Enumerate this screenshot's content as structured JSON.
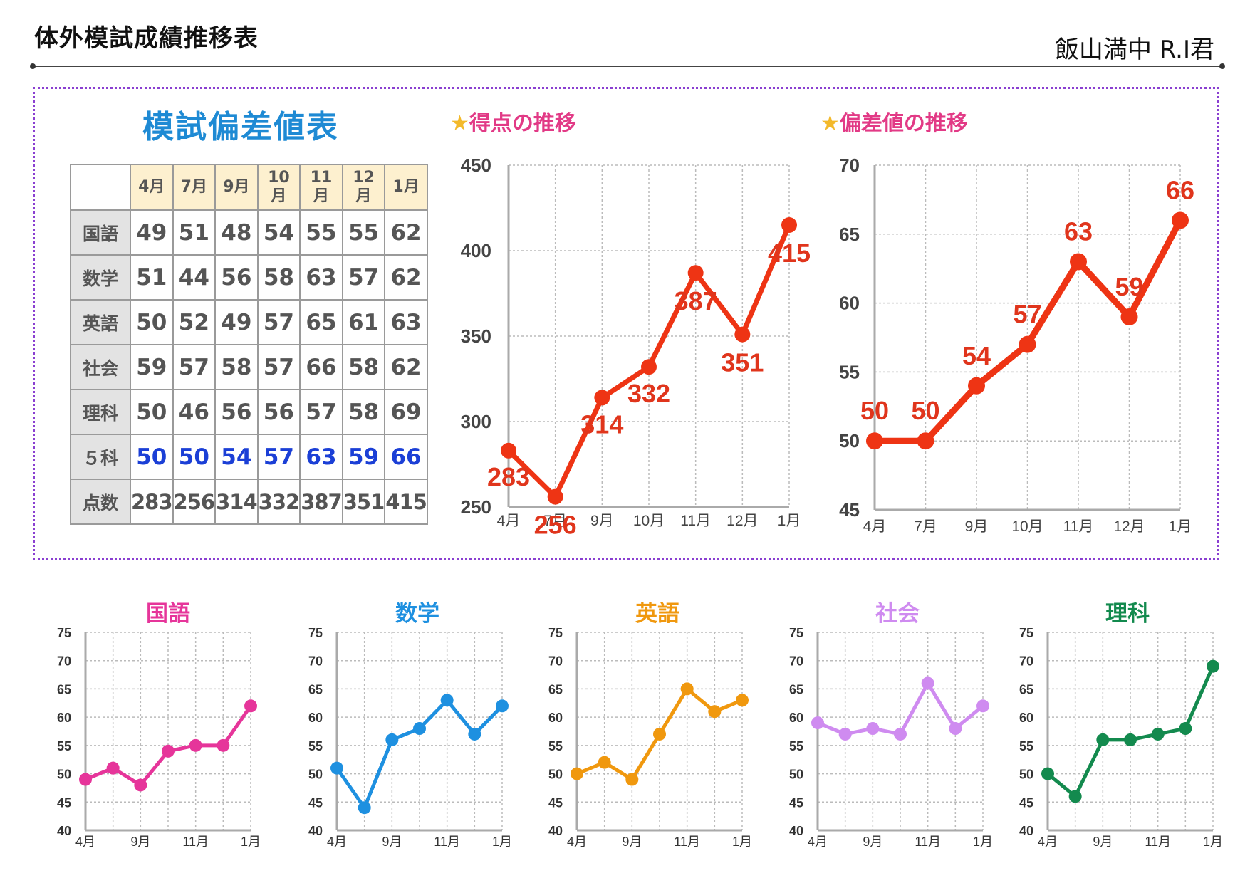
{
  "header": {
    "title": "体外模試成績推移表",
    "student": "飯山満中 R.I君"
  },
  "table": {
    "title": "模試偏差値表",
    "months": [
      "4月",
      "7月",
      "9月",
      "10\n月",
      "11\n月",
      "12\n月",
      "1月"
    ],
    "rows": [
      {
        "label": "国語",
        "values": [
          "49",
          "51",
          "48",
          "54",
          "55",
          "55",
          "62"
        ]
      },
      {
        "label": "数学",
        "values": [
          "51",
          "44",
          "56",
          "58",
          "63",
          "57",
          "62"
        ]
      },
      {
        "label": "英語",
        "values": [
          "50",
          "52",
          "49",
          "57",
          "65",
          "61",
          "63"
        ]
      },
      {
        "label": "社会",
        "values": [
          "59",
          "57",
          "58",
          "57",
          "66",
          "58",
          "62"
        ]
      },
      {
        "label": "理科",
        "values": [
          "50",
          "46",
          "56",
          "56",
          "57",
          "58",
          "69"
        ]
      },
      {
        "label": "５科",
        "values": [
          "50",
          "50",
          "54",
          "57",
          "63",
          "59",
          "66"
        ]
      },
      {
        "label": "点数",
        "values": [
          "283",
          "256",
          "314",
          "332",
          "387",
          "351",
          "415"
        ]
      }
    ]
  },
  "colors": {
    "main": "#ee3414",
    "kokugo": "#e6359a",
    "sugaku": "#1e90e0",
    "eigo": "#f0980e",
    "shakai": "#cf8bf0",
    "rika": "#138a4e"
  },
  "chart_data": [
    {
      "type": "line",
      "title": "得点の推移",
      "icon": "star-icon",
      "categories": [
        "4月",
        "7月",
        "9月",
        "10月",
        "11月",
        "12月",
        "1月"
      ],
      "values": [
        283,
        256,
        314,
        332,
        387,
        351,
        415
      ],
      "ylim": [
        250,
        450
      ],
      "yticks": [
        250,
        300,
        350,
        400,
        450
      ],
      "grid": true
    },
    {
      "type": "line",
      "title": "偏差値の推移",
      "icon": "star-icon",
      "categories": [
        "4月",
        "7月",
        "9月",
        "10月",
        "11月",
        "12月",
        "1月"
      ],
      "values": [
        50,
        50,
        54,
        57,
        63,
        59,
        66
      ],
      "ylim": [
        45,
        70
      ],
      "yticks": [
        45,
        50,
        55,
        60,
        65,
        70
      ],
      "grid": true
    },
    {
      "type": "line",
      "title": "国語",
      "values": [
        49,
        51,
        48,
        54,
        55,
        55,
        62
      ],
      "xticks": [
        "4月",
        "9月",
        "11月",
        "1月"
      ],
      "ylim": [
        40,
        75
      ],
      "yticks": [
        40,
        45,
        50,
        55,
        60,
        65,
        70,
        75
      ],
      "grid": true
    },
    {
      "type": "line",
      "title": "数学",
      "values": [
        51,
        44,
        56,
        58,
        63,
        57,
        62
      ],
      "xticks": [
        "4月",
        "9月",
        "11月",
        "1月"
      ],
      "ylim": [
        40,
        75
      ],
      "yticks": [
        40,
        45,
        50,
        55,
        60,
        65,
        70,
        75
      ],
      "grid": true
    },
    {
      "type": "line",
      "title": "英語",
      "values": [
        50,
        52,
        49,
        57,
        65,
        61,
        63
      ],
      "xticks": [
        "4月",
        "9月",
        "11月",
        "1月"
      ],
      "ylim": [
        40,
        75
      ],
      "yticks": [
        40,
        45,
        50,
        55,
        60,
        65,
        70,
        75
      ],
      "grid": true
    },
    {
      "type": "line",
      "title": "社会",
      "values": [
        59,
        57,
        58,
        57,
        66,
        58,
        62
      ],
      "xticks": [
        "4月",
        "9月",
        "11月",
        "1月"
      ],
      "ylim": [
        40,
        75
      ],
      "yticks": [
        40,
        45,
        50,
        55,
        60,
        65,
        70,
        75
      ],
      "grid": true
    },
    {
      "type": "line",
      "title": "理科",
      "values": [
        50,
        46,
        56,
        56,
        57,
        58,
        69
      ],
      "xticks": [
        "4月",
        "9月",
        "11月",
        "1月"
      ],
      "ylim": [
        40,
        75
      ],
      "yticks": [
        40,
        45,
        50,
        55,
        60,
        65,
        70,
        75
      ],
      "grid": true
    }
  ]
}
